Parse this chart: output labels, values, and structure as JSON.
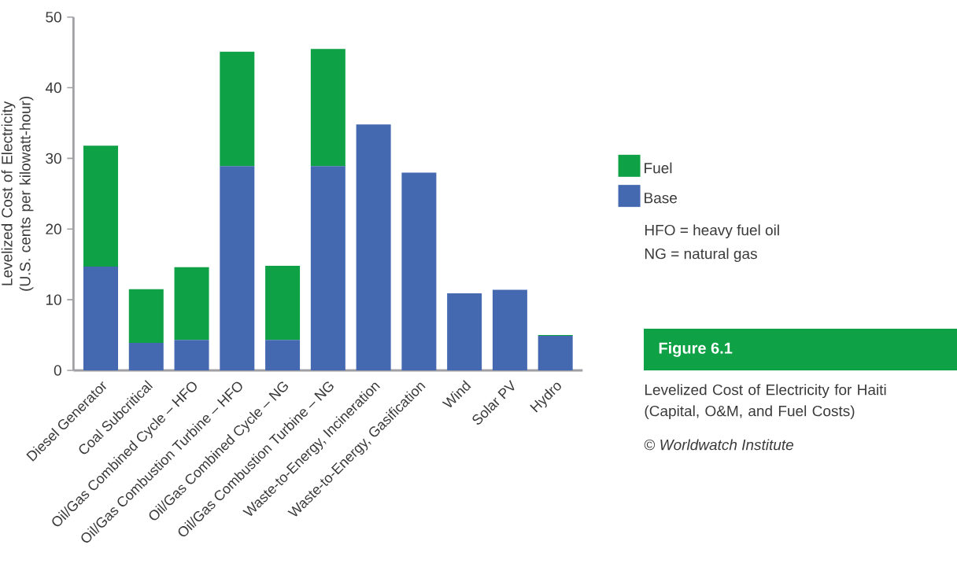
{
  "chart_data": {
    "type": "bar",
    "stacked": true,
    "title": "Figure 6.1",
    "subtitle": "Levelized Cost of Electricity for Haiti (Capital, O&M, and Fuel Costs)",
    "ylabel": "Levelized Cost of Electricity (U.S. cents per kilowatt-hour)",
    "categories": [
      "Diesel Generator",
      "Coal Subcritical",
      "Oil/Gas Combined Cycle – HFO",
      "Oil/Gas Combustion Turbine – HFO",
      "Oil/Gas Combined Cycle – NG",
      "Oil/Gas Combustion Turbine – NG",
      "Waste-to-Energy, Incineration",
      "Waste-to-Energy, Gasification",
      "Wind",
      "Solar PV",
      "Hydro"
    ],
    "series": [
      {
        "name": "Base",
        "color": "#4469b1",
        "values": [
          14.7,
          3.9,
          4.3,
          28.9,
          4.3,
          28.9,
          34.8,
          28.0,
          10.9,
          11.4,
          4.9
        ]
      },
      {
        "name": "Fuel",
        "color": "#0ea145",
        "values": [
          17.1,
          7.6,
          10.3,
          16.2,
          10.5,
          16.6,
          0,
          0,
          0,
          0,
          0.1
        ]
      }
    ],
    "ylim": [
      0,
      50
    ],
    "yticks": [
      0,
      10,
      20,
      30,
      40,
      50
    ],
    "legend": "right",
    "annotations": [
      "HFO = heavy fuel oil",
      "NG = natural gas",
      "© *Worldwatch Institute*"
    ]
  }
}
